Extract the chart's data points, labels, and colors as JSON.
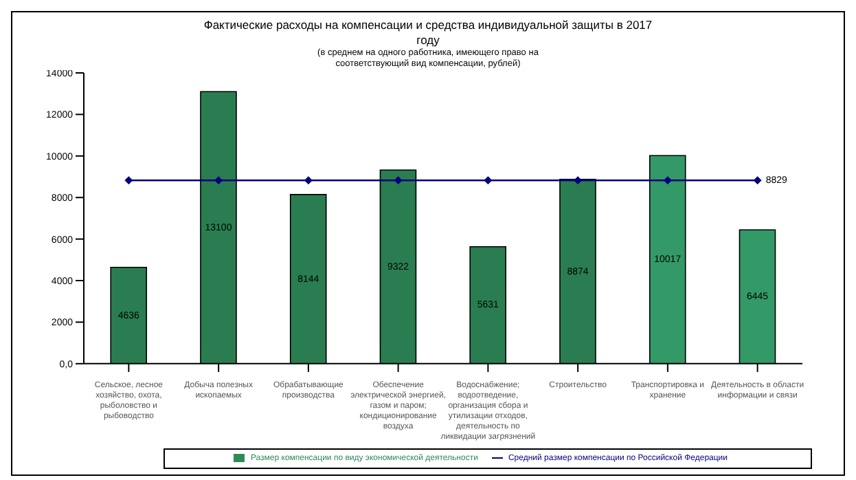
{
  "chart_data": {
    "type": "bar",
    "title": "Фактические расходы на компенсации и средства индивидуальной защиты в 2017 году",
    "subtitle": "(в среднем на одного работника, имеющего право на соответствующий вид компенсации, рублей)",
    "categories": [
      "Сельское, лесное хозяйство, охота, рыболовство и рыбоводство",
      "Добыча полезных ископаемых",
      "Обрабатывающие производства",
      "Обеспечение электрической энергией, газом и паром; кондиционирование воздуха",
      "Водоснабжение; водоотведение, организация сбора и утилизации отходов, деятельность по ликвидации загрязнений",
      "Строительство",
      "Транспортировка и хранение",
      "Деятельность в области информации и связи"
    ],
    "series": [
      {
        "name": "Размер компенсации по виду экономической деятельности",
        "color": "#2e8b57",
        "colors": [
          "#2a7d50",
          "#2a7d50",
          "#2a7d50",
          "#2a7d50",
          "#2a7d50",
          "#2a7d50",
          "#339966",
          "#339966"
        ],
        "values": [
          4636,
          13100,
          8144,
          9322,
          5631,
          8874,
          10017,
          6445
        ],
        "value_labels": [
          "4636",
          "13100",
          "8144",
          "9322",
          "5631",
          "8874",
          "10017",
          "6445"
        ]
      },
      {
        "name": "Средний размер компенсации по Российской Федерации",
        "type": "line",
        "color": "#000080",
        "values": [
          8829,
          8829,
          8829,
          8829,
          8829,
          8829,
          8829,
          8829
        ],
        "value_labels": [
          null,
          null,
          null,
          null,
          null,
          null,
          null,
          "8829"
        ]
      }
    ],
    "ylim": [
      0,
      14000
    ],
    "yticks": [
      {
        "value": 0,
        "label": "0,0"
      },
      2000,
      4000,
      6000,
      8000,
      10000,
      12000,
      14000
    ],
    "grid": false,
    "legend": "bottom",
    "marker": "diamond",
    "line_style": "solid"
  }
}
